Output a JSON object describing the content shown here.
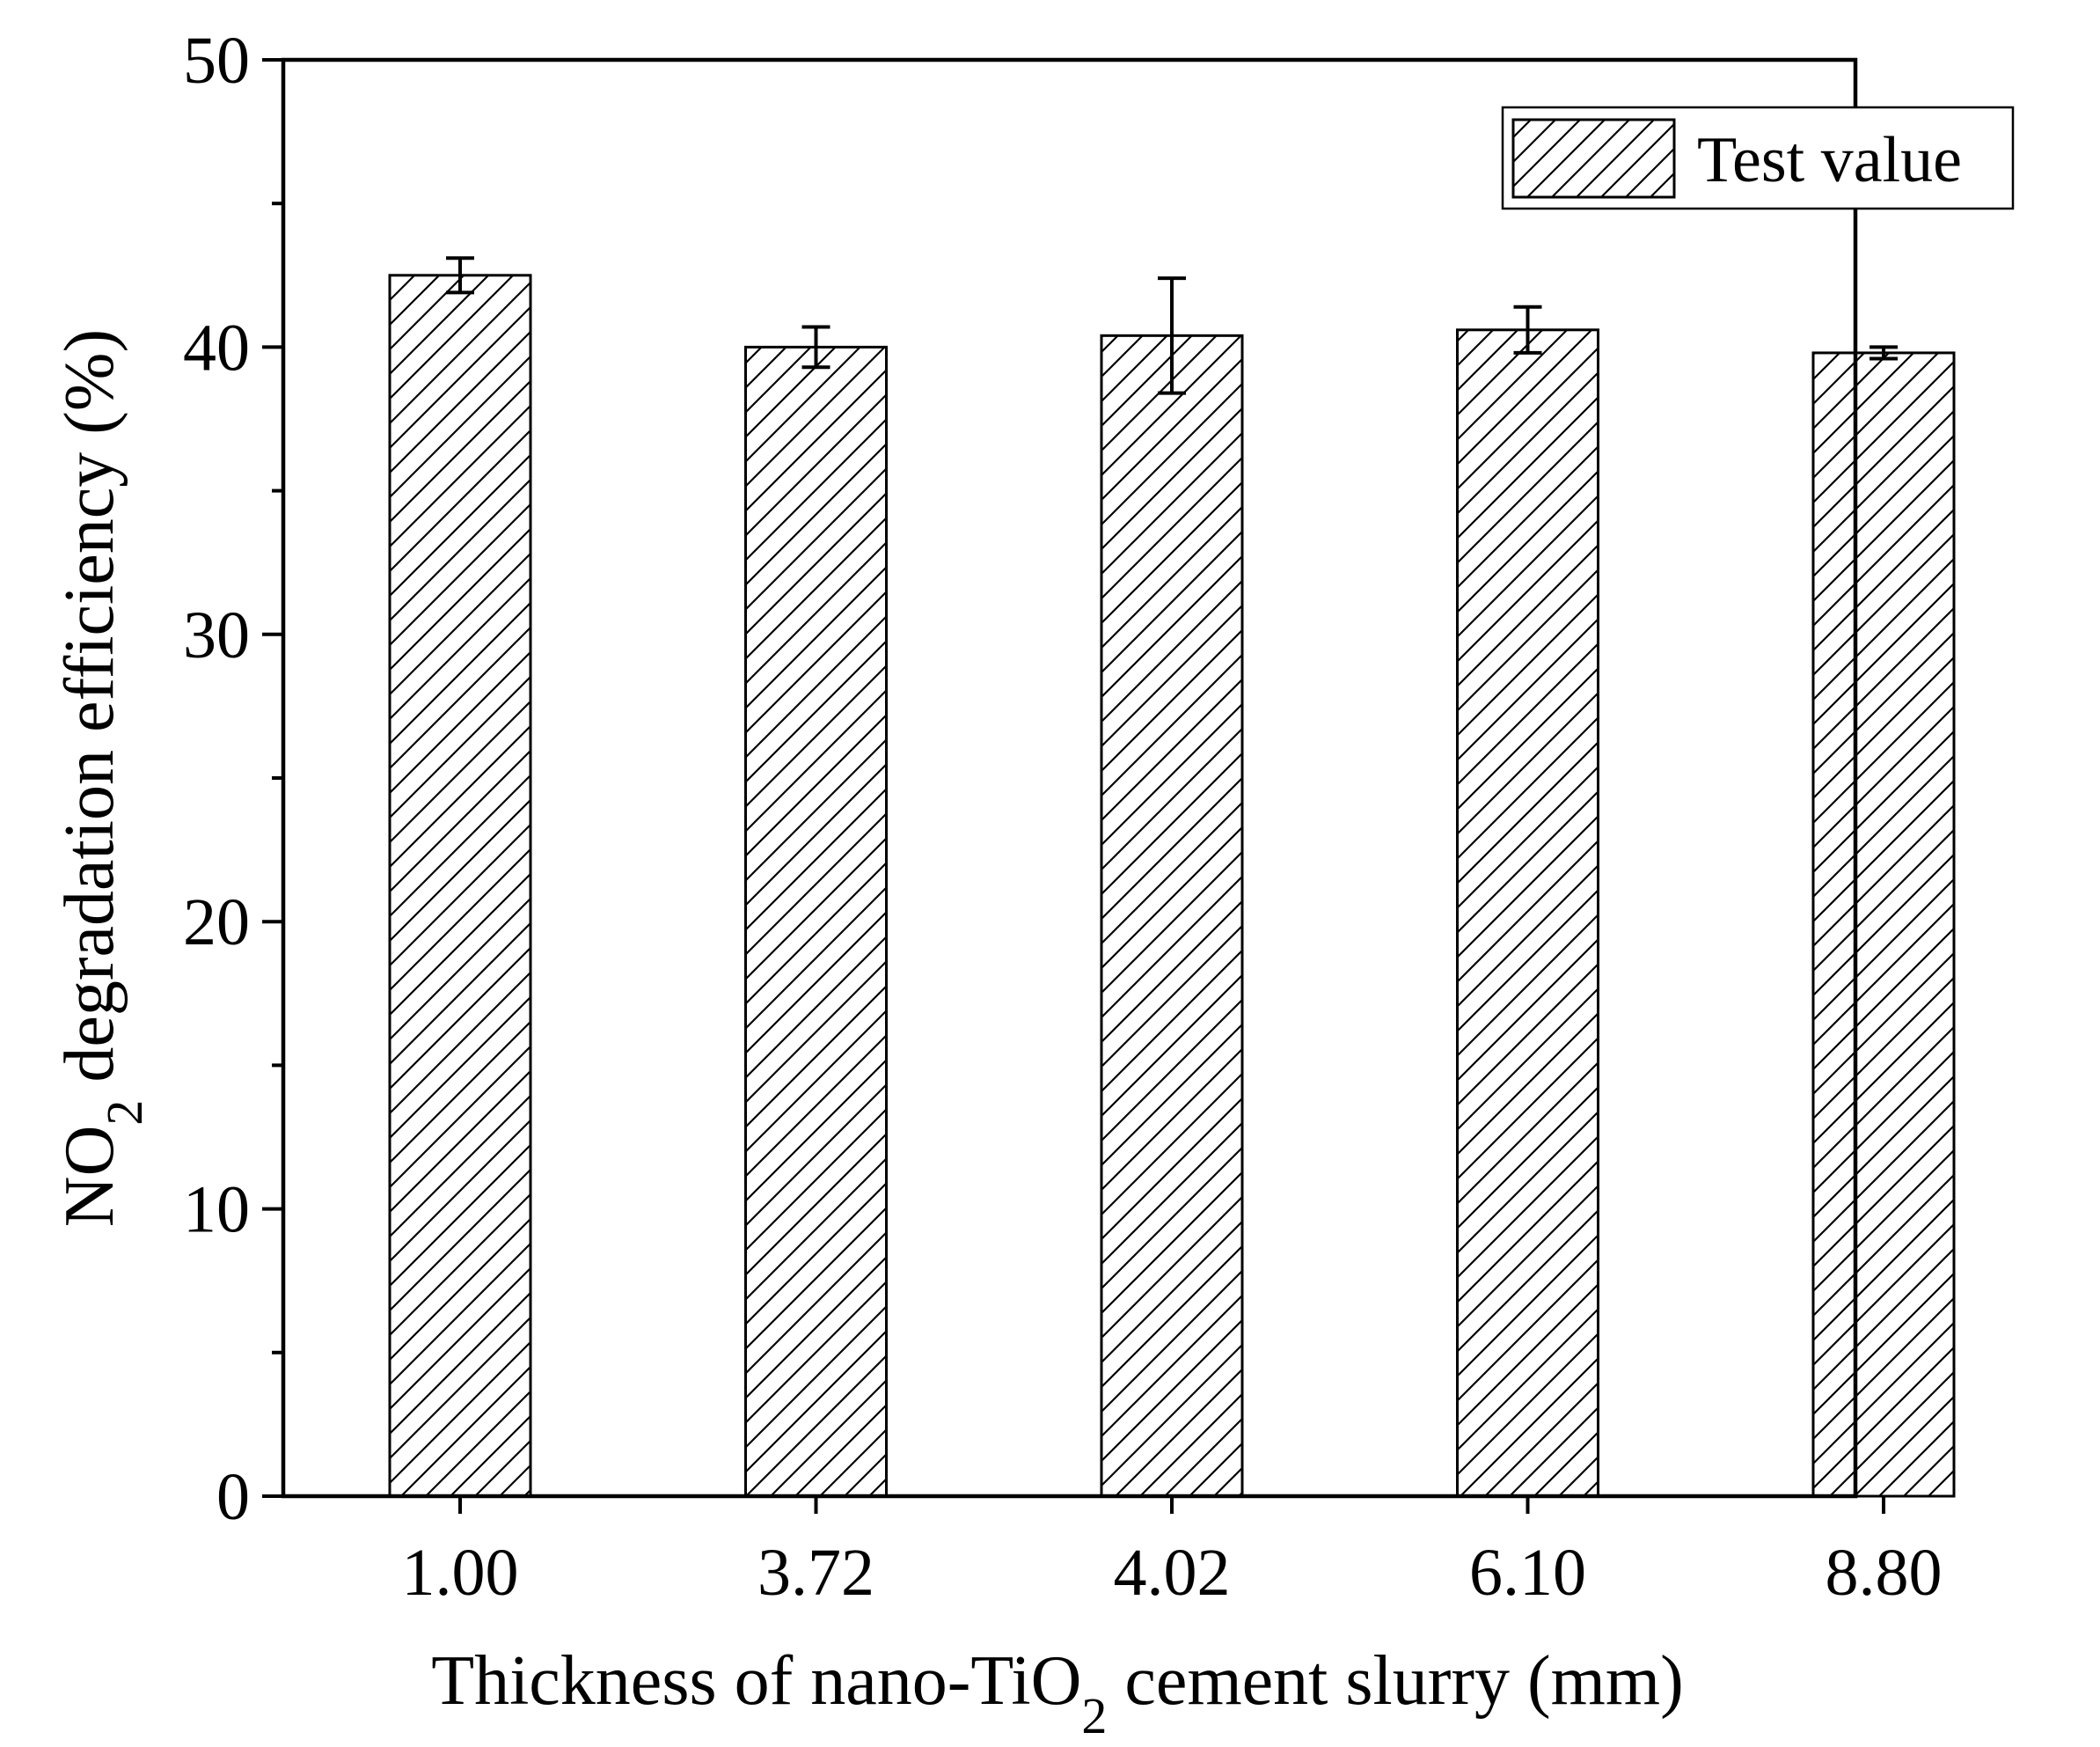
{
  "chart_data": {
    "type": "bar",
    "xlabel": {
      "prefix": "Thickness of nano-TiO",
      "subscript": "2",
      "suffix": " cement slurry (mm)"
    },
    "ylabel": {
      "prefix": "NO",
      "subscript": "2",
      "suffix": " degradation efficiency (%)"
    },
    "categories": [
      "1.00",
      "3.72",
      "4.02",
      "6.10",
      "8.80"
    ],
    "series": [
      {
        "name": "Test value",
        "values": [
          42.5,
          40.0,
          40.4,
          40.6,
          39.8
        ],
        "errors": [
          0.6,
          0.7,
          2.0,
          0.8,
          0.2
        ]
      }
    ],
    "ylim": [
      0,
      50
    ],
    "yticks": [
      0,
      10,
      20,
      30,
      40,
      50
    ],
    "y_minor_step": 5,
    "legend_location": "top-right",
    "bar_fill": "hatched",
    "grid": false
  },
  "colors": {
    "ink": "#000000",
    "background": "#ffffff"
  }
}
